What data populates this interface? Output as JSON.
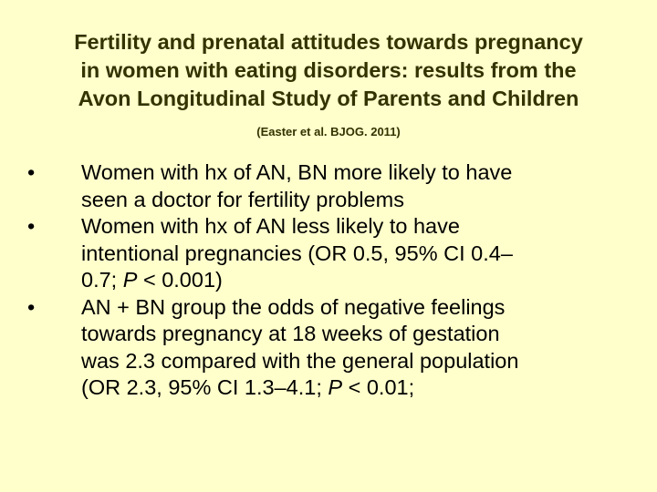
{
  "slide": {
    "background": "#ffffcc",
    "title_color": "#333300",
    "title_lines": [
      "Fertility and prenatal attitudes towards pregnancy",
      "in women with eating disorders: results from the",
      "Avon Longitudinal Study of Parents and Children"
    ],
    "citation": "(Easter et al. BJOG. 2011)",
    "bullet_marker": "•",
    "bullets": [
      {
        "lines": [
          [
            "Women with hx of AN, BN more likely to have"
          ],
          [
            "seen a doctor for fertility problems"
          ]
        ]
      },
      {
        "lines": [
          [
            "Women with hx of AN less likely to have"
          ],
          [
            "intentional pregnancies (OR 0.5, 95% CI 0.4–"
          ],
          [
            "0.7; ",
            "P",
            " < 0.001)"
          ]
        ]
      },
      {
        "lines": [
          [
            "AN + BN group the odds of negative feelings"
          ],
          [
            "towards pregnancy at 18 weeks of gestation"
          ],
          [
            "was 2.3 compared with the general population"
          ],
          [
            "(OR 2.3, 95% CI 1.3–4.1; ",
            "P",
            " < 0.01;"
          ]
        ]
      }
    ]
  }
}
